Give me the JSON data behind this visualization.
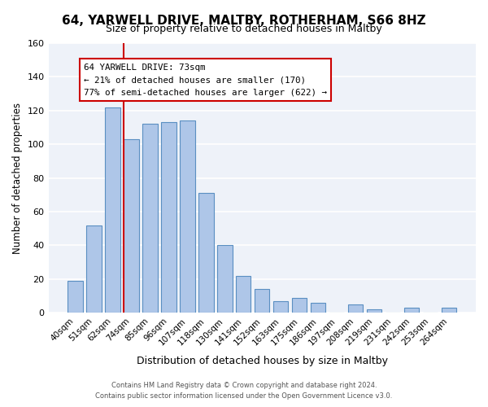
{
  "title": "64, YARWELL DRIVE, MALTBY, ROTHERHAM, S66 8HZ",
  "subtitle": "Size of property relative to detached houses in Maltby",
  "xlabel": "Distribution of detached houses by size in Maltby",
  "ylabel": "Number of detached properties",
  "bar_labels": [
    "40sqm",
    "51sqm",
    "62sqm",
    "74sqm",
    "85sqm",
    "96sqm",
    "107sqm",
    "118sqm",
    "130sqm",
    "141sqm",
    "152sqm",
    "163sqm",
    "175sqm",
    "186sqm",
    "197sqm",
    "208sqm",
    "219sqm",
    "231sqm",
    "242sqm",
    "253sqm",
    "264sqm"
  ],
  "bar_values": [
    19,
    52,
    122,
    103,
    112,
    113,
    114,
    71,
    40,
    22,
    14,
    7,
    9,
    6,
    0,
    5,
    2,
    0,
    3,
    0,
    3
  ],
  "bar_color": "#aec6e8",
  "bar_edge_color": "#5a8fc2",
  "vline_x": 2.6,
  "vline_color": "#cc0000",
  "annotation_title": "64 YARWELL DRIVE: 73sqm",
  "annotation_line1": "← 21% of detached houses are smaller (170)",
  "annotation_line2": "77% of semi-detached houses are larger (622) →",
  "annotation_box_color": "#ffffff",
  "annotation_box_edge": "#cc0000",
  "ylim": [
    0,
    160
  ],
  "yticks": [
    0,
    20,
    40,
    60,
    80,
    100,
    120,
    140,
    160
  ],
  "background_color": "#eef2f9",
  "footer1": "Contains HM Land Registry data © Crown copyright and database right 2024.",
  "footer2": "Contains public sector information licensed under the Open Government Licence v3.0."
}
